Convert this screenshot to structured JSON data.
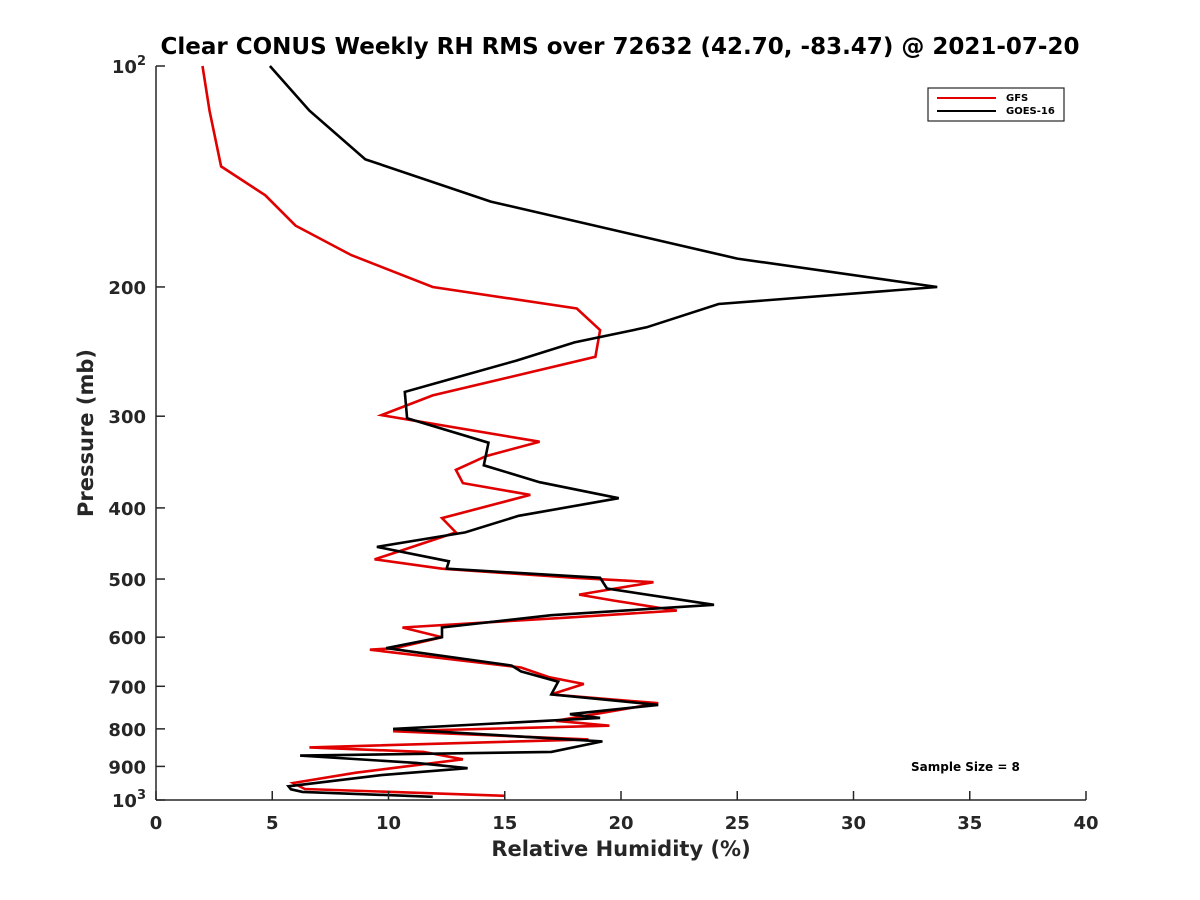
{
  "chart_data": {
    "type": "line",
    "title": "Clear CONUS Weekly RH RMS over 72632 (42.70, -83.47) @ 2021-07-20",
    "xlabel": "Relative Humidity (%)",
    "ylabel": "Pressure (mb)",
    "xlim": [
      0,
      40
    ],
    "ylim": [
      100,
      1000
    ],
    "yscale": "log",
    "y_reversed": true,
    "grid": false,
    "legend_placement": "top-right",
    "x_ticks": [
      "0",
      "5",
      "10",
      "15",
      "20",
      "25",
      "30",
      "35",
      "40"
    ],
    "y_ticks": [
      {
        "value": 100,
        "base": "10",
        "exp": "2"
      },
      {
        "value": 200,
        "label": "200"
      },
      {
        "value": 300,
        "label": "300"
      },
      {
        "value": 400,
        "label": "400"
      },
      {
        "value": 500,
        "label": "500"
      },
      {
        "value": 600,
        "label": "600"
      },
      {
        "value": 700,
        "label": "700"
      },
      {
        "value": 800,
        "label": "800"
      },
      {
        "value": 900,
        "label": "900"
      },
      {
        "value": 1000,
        "base": "10",
        "exp": "3"
      }
    ],
    "series": [
      {
        "name": "GFS",
        "color": "#e00000",
        "points": [
          [
            2.0,
            100
          ],
          [
            2.3,
            115
          ],
          [
            2.8,
            137
          ],
          [
            4.7,
            150
          ],
          [
            6.0,
            165
          ],
          [
            8.4,
            181
          ],
          [
            11.9,
            200
          ],
          [
            18.1,
            214
          ],
          [
            19.1,
            229
          ],
          [
            18.9,
            249
          ],
          [
            11.9,
            281
          ],
          [
            9.7,
            299
          ],
          [
            16.5,
            325
          ],
          [
            14.2,
            340
          ],
          [
            12.9,
            355
          ],
          [
            13.2,
            370
          ],
          [
            16.1,
            384
          ],
          [
            12.3,
            413
          ],
          [
            12.9,
            432
          ],
          [
            10.3,
            460
          ],
          [
            9.4,
            470
          ],
          [
            12.3,
            484
          ],
          [
            18.0,
            498
          ],
          [
            21.4,
            505
          ],
          [
            18.2,
            525
          ],
          [
            19.7,
            535
          ],
          [
            22.4,
            552
          ],
          [
            17.8,
            564
          ],
          [
            10.6,
            582
          ],
          [
            12.3,
            600
          ],
          [
            10.3,
            621
          ],
          [
            9.2,
            624
          ],
          [
            15.7,
            660
          ],
          [
            16.9,
            680
          ],
          [
            18.4,
            695
          ],
          [
            17.0,
            718
          ],
          [
            21.6,
            738
          ],
          [
            17.2,
            780
          ],
          [
            19.5,
            792
          ],
          [
            10.2,
            806
          ],
          [
            18.6,
            827
          ],
          [
            6.6,
            848
          ],
          [
            11.5,
            860
          ],
          [
            13.2,
            880
          ],
          [
            11.0,
            898
          ],
          [
            8.6,
            918
          ],
          [
            5.9,
            948
          ],
          [
            6.4,
            966
          ],
          [
            15.0,
            987
          ]
        ]
      },
      {
        "name": "GOES-16",
        "color": "#000000",
        "points": [
          [
            4.9,
            100
          ],
          [
            6.6,
            115
          ],
          [
            9.0,
            134
          ],
          [
            14.4,
            153
          ],
          [
            25.0,
            183
          ],
          [
            33.6,
            200
          ],
          [
            24.2,
            211
          ],
          [
            21.1,
            227
          ],
          [
            18.0,
            238
          ],
          [
            15.5,
            252
          ],
          [
            10.7,
            278
          ],
          [
            10.8,
            302
          ],
          [
            14.3,
            326
          ],
          [
            14.1,
            350
          ],
          [
            16.5,
            369
          ],
          [
            19.9,
            388
          ],
          [
            15.6,
            410
          ],
          [
            13.3,
            432
          ],
          [
            9.5,
            452
          ],
          [
            12.6,
            473
          ],
          [
            12.5,
            484
          ],
          [
            19.1,
            498
          ],
          [
            19.4,
            515
          ],
          [
            24.0,
            542
          ],
          [
            17.0,
            560
          ],
          [
            12.3,
            582
          ],
          [
            12.3,
            600
          ],
          [
            9.9,
            621
          ],
          [
            15.3,
            656
          ],
          [
            15.7,
            668
          ],
          [
            17.3,
            690
          ],
          [
            17.0,
            718
          ],
          [
            21.6,
            742
          ],
          [
            17.8,
            764
          ],
          [
            19.1,
            773
          ],
          [
            10.2,
            800
          ],
          [
            19.2,
            832
          ],
          [
            17.0,
            860
          ],
          [
            6.2,
            870
          ],
          [
            11.2,
            890
          ],
          [
            13.4,
            905
          ],
          [
            9.7,
            925
          ],
          [
            5.7,
            958
          ],
          [
            5.8,
            967
          ],
          [
            6.3,
            975
          ],
          [
            11.9,
            990
          ]
        ]
      }
    ],
    "annotations": [
      "Sample Size = 8"
    ]
  }
}
